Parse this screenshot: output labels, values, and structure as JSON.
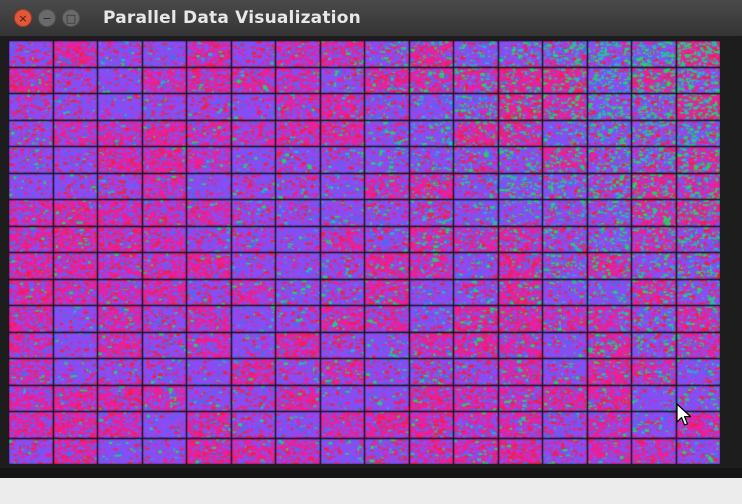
{
  "window": {
    "title": "Parallel Data Visualization",
    "close_glyph": "×",
    "minimize_glyph": "−",
    "maximize_glyph": "□"
  },
  "visualization": {
    "grid_columns": 16,
    "grid_rows": 16,
    "palette": {
      "magenta": "#e8219a",
      "red": "#f0204c",
      "purple": "#8a4df2",
      "blue": "#4a6cf0",
      "teal": "#23b7c8",
      "green": "#22d46a",
      "grid_line": "#15121e",
      "background": "#1d1d1d"
    }
  },
  "colors": {
    "titlebar": "#3c3c3c",
    "close_button": "#e2573a",
    "status_bar": "#ececec"
  }
}
